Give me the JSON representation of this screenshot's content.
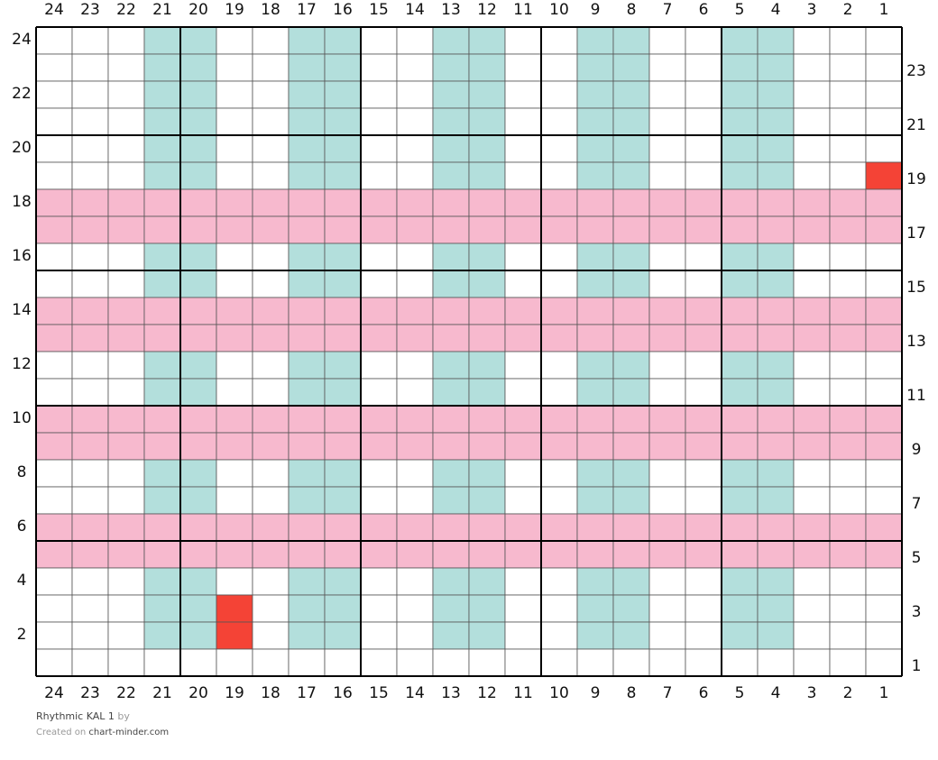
{
  "chart": {
    "column_labels": [
      24,
      23,
      22,
      21,
      20,
      19,
      18,
      17,
      16,
      15,
      14,
      13,
      12,
      11,
      10,
      9,
      8,
      7,
      6,
      5,
      4,
      3,
      2,
      1
    ],
    "row_labels": [
      24,
      23,
      22,
      21,
      20,
      19,
      18,
      17,
      16,
      15,
      14,
      13,
      12,
      11,
      10,
      9,
      8,
      7,
      6,
      5,
      4,
      3,
      2,
      1
    ],
    "palette": {
      "w": "#ffffff",
      "t": "#b3dfdc",
      "p": "#f7b9ce",
      "r": "#f44336"
    },
    "rows": [
      "wwwttwwttwwttwwttwwttwww",
      "wwwttwwttwwttwwttwwttwww",
      "wwwttwwttwwttwwttwwttwww",
      "wwwttwwttwwttwwttwwttwww",
      "wwwttwwttwwttwwttwwttwww",
      "wwwttwwttwwttwwttwwttwwr",
      "pppppppppppppppppppppppp",
      "pppppppppppppppppppppppp",
      "wwwttwwttwwttwwttwwttwww",
      "wwwttwwttwwttwwttwwttwww",
      "pppppppppppppppppppppppp",
      "pppppppppppppppppppppppp",
      "wwwttwwttwwttwwttwwttwww",
      "wwwttwwttwwttwwttwwttwww",
      "pppppppppppppppppppppppp",
      "pppppppppppppppppppppppp",
      "wwwttwwttwwttwwttwwttwww",
      "wwwttwwttwwttwwttwwttwww",
      "pppppppppppppppppppppppp",
      "pppppppppppppppppppppppp",
      "wwwttwwttwwttwwttwwttwww",
      "wwwttrwttwwttwwttwwttwww",
      "wwwttrwttwwttwwttwwttwww",
      "wwwwwwwwwwwwwwwwwwwwwwww"
    ]
  },
  "footer": {
    "title": "Rhythmic KAL 1",
    "by": "by",
    "created": "Created on",
    "site": "chart-minder.com"
  }
}
